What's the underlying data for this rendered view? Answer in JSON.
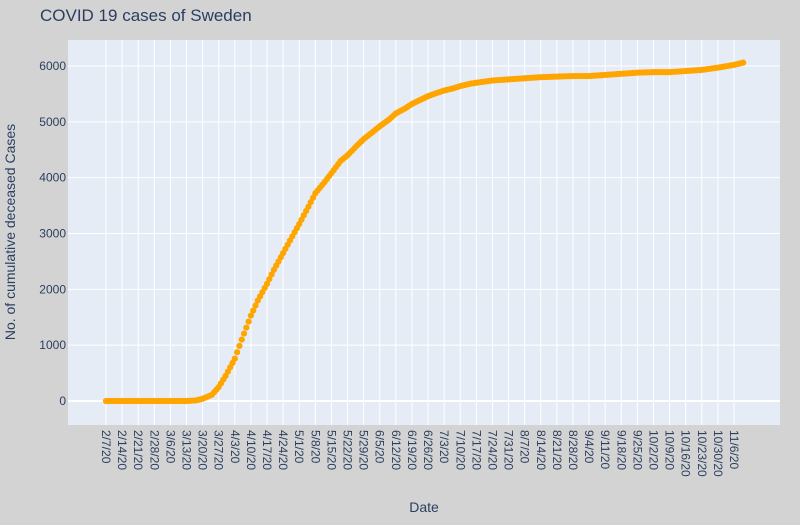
{
  "chart_data": {
    "type": "scatter",
    "title": "COVID 19 cases of Sweden",
    "xlabel": "Date",
    "ylabel": "No. of cumulative deceased Cases",
    "x_start_date": "2/7/20",
    "x_end_date": "11/10/20",
    "x_tick_labels": [
      "2/7/20",
      "2/14/20",
      "2/21/20",
      "2/28/20",
      "3/6/20",
      "3/13/20",
      "3/20/20",
      "3/27/20",
      "4/3/20",
      "4/10/20",
      "4/17/20",
      "4/24/20",
      "5/1/20",
      "5/8/20",
      "5/15/20",
      "5/22/20",
      "5/29/20",
      "6/5/20",
      "6/12/20",
      "6/19/20",
      "6/26/20",
      "7/3/20",
      "7/10/20",
      "7/17/20",
      "7/24/20",
      "7/31/20",
      "8/7/20",
      "8/14/20",
      "8/21/20",
      "8/28/20",
      "9/4/20",
      "9/11/20",
      "9/18/20",
      "9/25/20",
      "10/2/20",
      "10/9/20",
      "10/16/20",
      "10/23/20",
      "10/30/20",
      "11/6/20"
    ],
    "y_ticks": [
      0,
      1000,
      2000,
      3000,
      4000,
      5000,
      6000
    ],
    "y_tick_labels": [
      "0",
      "1000",
      "2000",
      "3000",
      "4000",
      "5000",
      "6000"
    ],
    "ylim": [
      -420,
      6450
    ],
    "grid": true,
    "marker_color": "#ffa500",
    "background_color": "#e5ecf6",
    "series": [
      {
        "dates": [
          "2/7/20",
          "3/13/20",
          "3/17/20",
          "3/20/20",
          "3/24/20",
          "3/27/20",
          "3/30/20",
          "4/3/20",
          "4/6/20",
          "4/10/20",
          "4/13/20",
          "4/17/20",
          "4/20/20",
          "4/24/20",
          "4/28/20",
          "5/1/20",
          "5/5/20",
          "5/8/20",
          "5/12/20",
          "5/15/20",
          "5/19/20",
          "5/22/20",
          "5/26/20",
          "5/29/20",
          "6/2/20",
          "6/5/20",
          "6/9/20",
          "6/12/20",
          "6/16/20",
          "6/19/20",
          "6/23/20",
          "6/26/20",
          "6/30/20",
          "7/3/20",
          "7/7/20",
          "7/10/20",
          "7/14/20",
          "7/17/20",
          "7/24/20",
          "7/31/20",
          "8/7/20",
          "8/14/20",
          "8/21/20",
          "8/28/20",
          "9/4/20",
          "9/11/20",
          "9/18/20",
          "9/25/20",
          "10/2/20",
          "10/9/20",
          "10/16/20",
          "10/23/20",
          "10/30/20",
          "11/6/20",
          "11/10/20"
        ],
        "values": [
          0,
          0,
          10,
          40,
          110,
          250,
          450,
          760,
          1100,
          1530,
          1800,
          2100,
          2350,
          2650,
          2950,
          3170,
          3480,
          3720,
          3920,
          4080,
          4300,
          4400,
          4570,
          4690,
          4820,
          4920,
          5040,
          5150,
          5240,
          5320,
          5400,
          5460,
          5520,
          5560,
          5600,
          5640,
          5680,
          5700,
          5740,
          5760,
          5780,
          5800,
          5810,
          5820,
          5820,
          5840,
          5860,
          5880,
          5890,
          5890,
          5910,
          5930,
          5970,
          6020,
          6060
        ]
      }
    ]
  }
}
